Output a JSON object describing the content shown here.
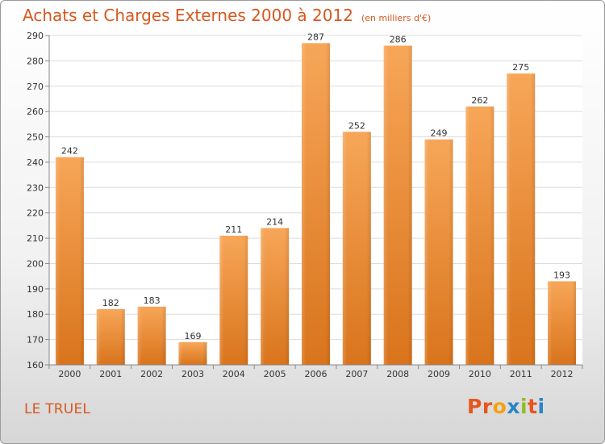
{
  "header": {
    "title": "Achats et Charges Externes 2000 à 2012",
    "subtitle": "(en milliers d'€)"
  },
  "footer": {
    "commune": "LE TRUEL",
    "logo_text": "Proxiti",
    "logo_colors": [
      "#e8551e",
      "#e8551e",
      "#f2a30f",
      "#2a84c8",
      "#8cbf26",
      "#e8551e",
      "#2a84c8"
    ]
  },
  "colors": {
    "accent": "#d8571e",
    "bar_top": "#f7a658",
    "bar_bottom": "#d9741c",
    "gridline": "#dcdcdc"
  },
  "chart_data": {
    "type": "bar",
    "title": "Achats et Charges Externes 2000 à 2012",
    "subtitle": "(en milliers d'€)",
    "xlabel": "",
    "ylabel": "",
    "categories": [
      "2000",
      "2001",
      "2002",
      "2003",
      "2004",
      "2005",
      "2006",
      "2007",
      "2008",
      "2009",
      "2010",
      "2011",
      "2012"
    ],
    "values": [
      242,
      182,
      183,
      169,
      211,
      214,
      287,
      252,
      286,
      249,
      262,
      275,
      193
    ],
    "ylim": [
      160,
      290
    ],
    "yticks": [
      160,
      170,
      180,
      190,
      200,
      210,
      220,
      230,
      240,
      250,
      260,
      270,
      280,
      290
    ],
    "grid": true,
    "data_labels": true
  }
}
